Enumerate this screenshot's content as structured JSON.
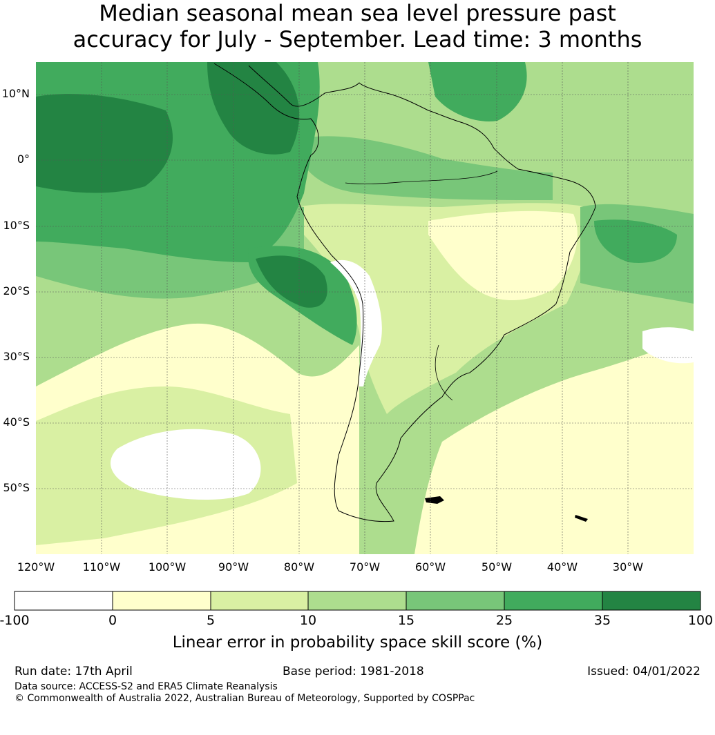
{
  "title_line1": "Median seasonal mean sea level pressure past",
  "title_line2": "accuracy for July - September. Lead time: 3 months",
  "lat_labels": [
    "10°N",
    "0°",
    "10°S",
    "20°S",
    "30°S",
    "40°S",
    "50°S"
  ],
  "lat_values": [
    10,
    0,
    -10,
    -20,
    -30,
    -40,
    -50
  ],
  "lon_labels": [
    "120°W",
    "110°W",
    "100°W",
    "90°W",
    "80°W",
    "70°W",
    "60°W",
    "50°W",
    "40°W",
    "30°W"
  ],
  "lon_values": [
    -120,
    -110,
    -100,
    -90,
    -80,
    -70,
    -60,
    -50,
    -40,
    -30
  ],
  "map_extent": {
    "lon": [
      -120,
      -20
    ],
    "lat": [
      -60,
      15
    ]
  },
  "colorbar": {
    "ticks": [
      "-100",
      "0",
      "5",
      "10",
      "15",
      "25",
      "35",
      "100"
    ],
    "colors": [
      "#ffffff",
      "#ffffcc",
      "#d9f0a3",
      "#addd8e",
      "#78c679",
      "#41ab5d",
      "#238443"
    ],
    "label": "Linear error in probability space skill score (%)"
  },
  "footer": {
    "run_date": "Run date: 17th April",
    "base_period": "Base period: 1981-2018",
    "issued": "Issued: 04/01/2022",
    "data_source": "Data source: ACCESS-S2 and ERA5 Climate Reanalysis",
    "copyright": "© Commonwealth of Australia 2022, Australian Bureau of Meteorology, Supported by COSPPac"
  }
}
